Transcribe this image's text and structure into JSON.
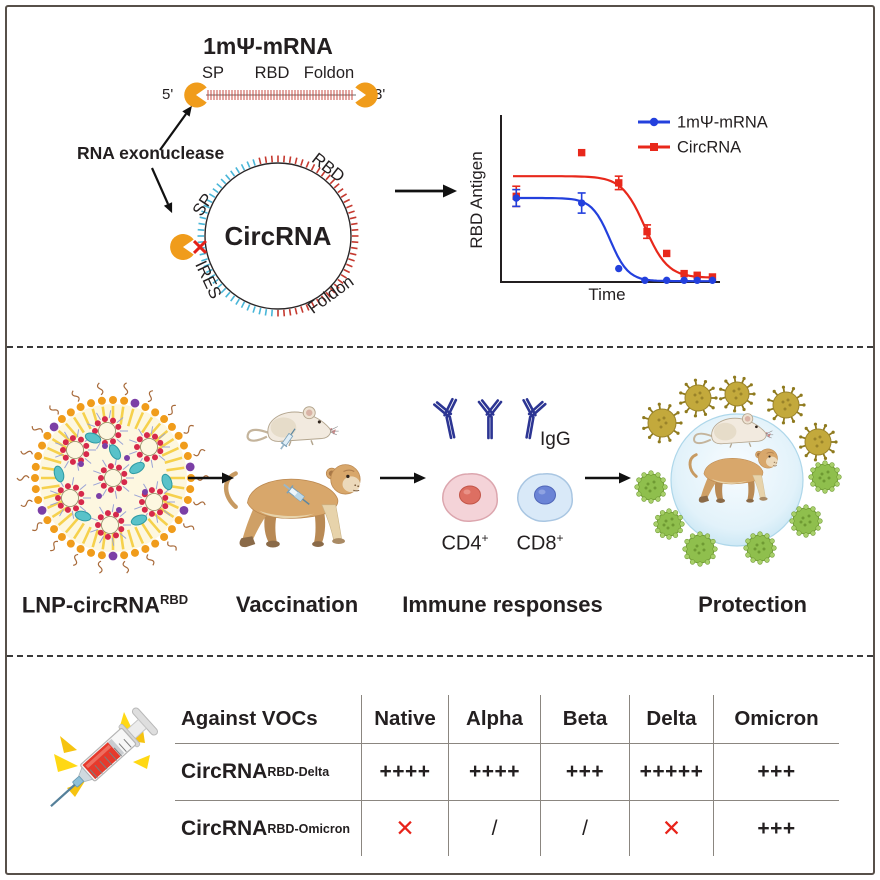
{
  "figure": {
    "border_color": "#57504a",
    "background": "#ffffff"
  },
  "panel_rna": {
    "mrna_title": "1mΨ-mRNA",
    "five_prime": "5'",
    "three_prime": "3'",
    "segments": [
      "SP",
      "RBD",
      "Foldon"
    ],
    "exonuclease_label": "RNA exonuclease",
    "blocked_icon": "✕",
    "circrna_title": "CircRNA",
    "circ_labels": [
      "SP",
      "RBD",
      "IRES",
      "Foldon"
    ]
  },
  "chart_data": {
    "type": "line",
    "title": "",
    "xlabel": "Time",
    "ylabel": "RBD Antigen",
    "xlim": [
      0,
      10
    ],
    "ylim": [
      0,
      100
    ],
    "grid": false,
    "axis_ticks": "none",
    "legend_position": "top-right",
    "series": [
      {
        "name": "CircRNA",
        "color": "#e8281b",
        "marker": "square",
        "points": [
          {
            "x": 0.7,
            "y": 51,
            "err": 6
          },
          {
            "x": 3.7,
            "y": 77
          },
          {
            "x": 5.4,
            "y": 59,
            "err": 4
          },
          {
            "x": 6.7,
            "y": 30,
            "err": 4
          },
          {
            "x": 7.6,
            "y": 17
          },
          {
            "x": 8.4,
            "y": 5
          },
          {
            "x": 9.0,
            "y": 4
          },
          {
            "x": 9.7,
            "y": 3
          }
        ],
        "fit": {
          "top": 63,
          "bottom": 2.5,
          "mid": 6.6,
          "k": 1.9
        }
      },
      {
        "name": "1mΨ-mRNA",
        "color": "#2340dd",
        "marker": "circle",
        "points": [
          {
            "x": 0.7,
            "y": 50,
            "err": 5
          },
          {
            "x": 3.7,
            "y": 47,
            "err": 6
          },
          {
            "x": 5.4,
            "y": 8
          },
          {
            "x": 6.6,
            "y": 1
          },
          {
            "x": 7.6,
            "y": 1
          },
          {
            "x": 8.4,
            "y": 1
          },
          {
            "x": 9.0,
            "y": 1
          },
          {
            "x": 9.7,
            "y": 1
          }
        ],
        "fit": {
          "top": 50,
          "bottom": 0.5,
          "mid": 5.0,
          "k": 2.4
        }
      }
    ],
    "legend_order": [
      "1mΨ-mRNA",
      "CircRNA"
    ]
  },
  "panel_pipeline": {
    "steps": [
      {
        "label": "LNP-circRNA",
        "sup": "RBD"
      },
      {
        "label": "Vaccination",
        "sup": ""
      },
      {
        "label": "Immune responses",
        "sup": ""
      },
      {
        "label": "Protection",
        "sup": ""
      }
    ],
    "igg_label": "IgG",
    "tcell_labels": [
      {
        "base": "CD4",
        "sup": "+"
      },
      {
        "base": "CD8",
        "sup": "+"
      }
    ]
  },
  "panel_table": {
    "header": [
      "Against VOCs",
      "Native",
      "Alpha",
      "Beta",
      "Delta",
      "Omicron"
    ],
    "rows": [
      {
        "label": "CircRNA",
        "sup": "RBD-Delta",
        "values": [
          "++++",
          "++++",
          "+++",
          "+++++",
          "+++"
        ]
      },
      {
        "label": "CircRNA",
        "sup": "RBD-Omicron",
        "values": [
          "✕",
          "/",
          "/",
          "✕",
          "+++"
        ]
      }
    ],
    "cross_color": "#e8231a"
  },
  "icons": {
    "exonuclease_icon": "pacman",
    "blocked_icon": "✕",
    "syringe_icon": "syringe",
    "antibody_icon": "Y-antibody",
    "virus_icon": "spiked-virus"
  },
  "colors": {
    "accent_orange": "#f09c1b",
    "chart_blue": "#2340dd",
    "chart_red": "#e8281b",
    "antibody_navy": "#2c3593",
    "tick_red": "#c5392f",
    "tick_cyan": "#49b6d8",
    "table_line": "#8b8680"
  }
}
